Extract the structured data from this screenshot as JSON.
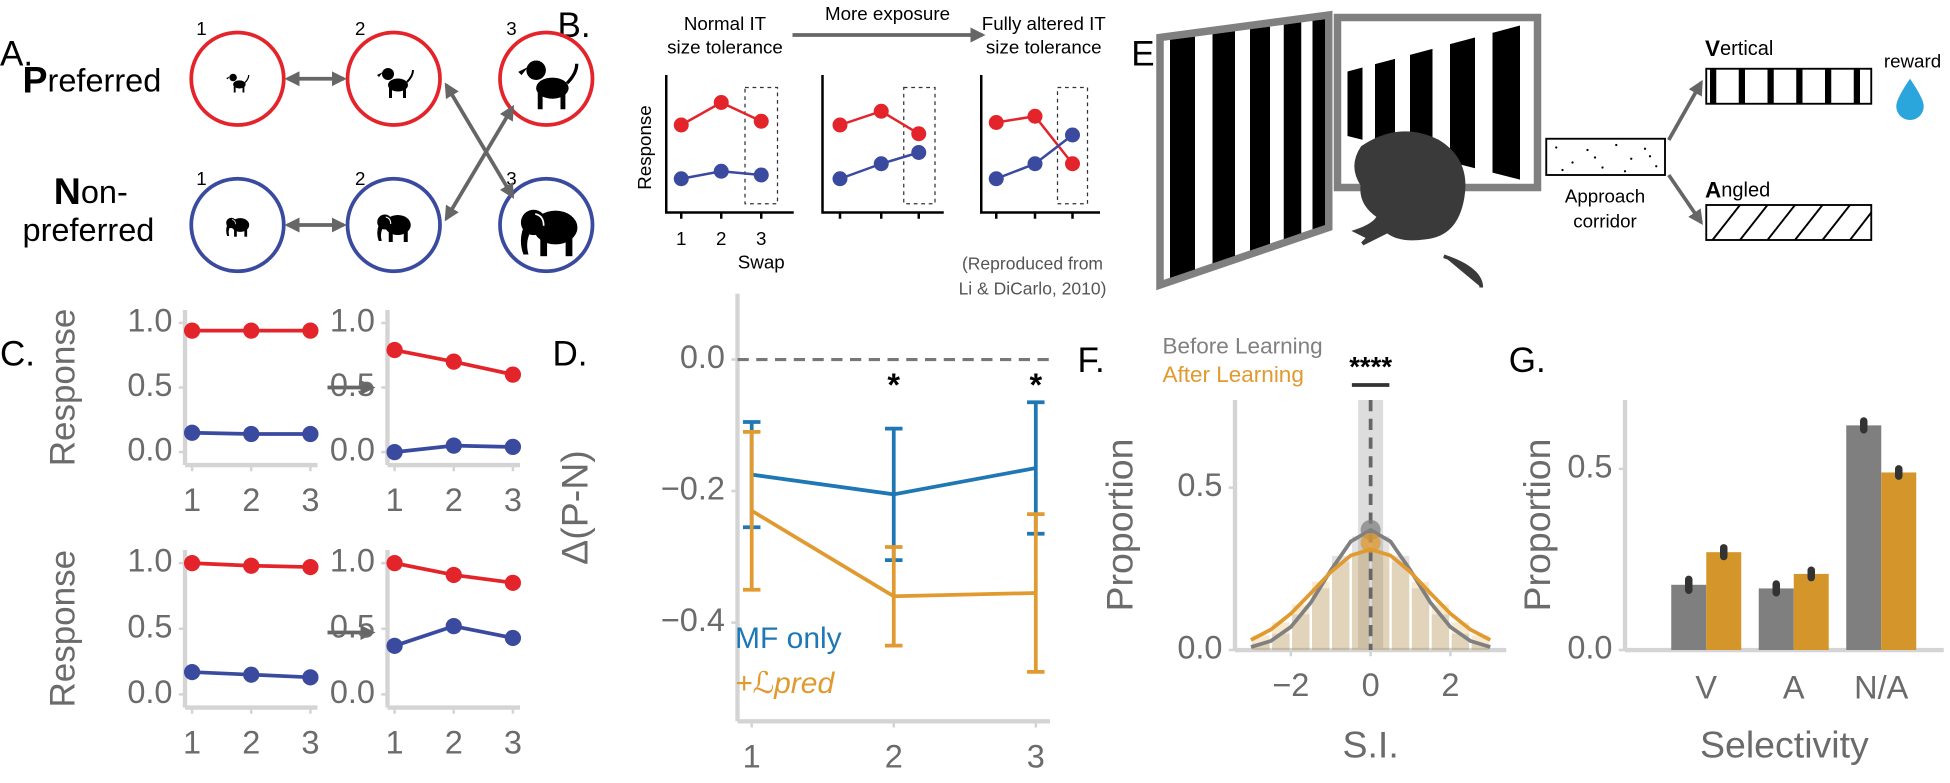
{
  "chart_data": [
    {
      "type": "line",
      "ylabel": "Response",
      "x": [
        1,
        2,
        3
      ],
      "series": [
        {
          "color": "#e3242b",
          "values": [
            0.94,
            0.94,
            0.94
          ]
        },
        {
          "color": "#3a4a9f",
          "values": [
            0.15,
            0.14,
            0.14
          ]
        }
      ],
      "xlim": [
        0.88,
        3.12
      ],
      "xticks": [
        1,
        2,
        3
      ],
      "ylim": [
        -0.1,
        1.1
      ],
      "yticks": [
        {
          "value": 0,
          "label": "0.0"
        },
        0.5,
        {
          "value": 1,
          "label": "1.0"
        }
      ]
    },
    {
      "type": "line",
      "x": [
        1,
        2,
        3
      ],
      "series": [
        {
          "color": "#e3242b",
          "values": [
            0.79,
            0.7,
            0.6
          ]
        },
        {
          "color": "#3a4a9f",
          "values": [
            0.0,
            0.05,
            0.04
          ]
        }
      ],
      "xlim": [
        0.88,
        3.12
      ],
      "xticks": [
        1,
        2,
        3
      ],
      "ylim": [
        -0.1,
        1.1
      ],
      "yticks": [
        {
          "value": 0,
          "label": "0.0"
        },
        0.5,
        {
          "value": 1,
          "label": "1.0"
        }
      ]
    },
    {
      "type": "line",
      "ylabel": "Response",
      "x": [
        1,
        2,
        3
      ],
      "series": [
        {
          "color": "#e3242b",
          "values": [
            1.0,
            0.98,
            0.97
          ]
        },
        {
          "color": "#3a4a9f",
          "values": [
            0.17,
            0.15,
            0.13
          ]
        }
      ],
      "xlim": [
        0.88,
        3.12
      ],
      "xticks": [
        1,
        2,
        3
      ],
      "ylim": [
        -0.1,
        1.1
      ],
      "yticks": [
        {
          "value": 0,
          "label": "0.0"
        },
        0.5,
        {
          "value": 1,
          "label": "1.0"
        }
      ]
    },
    {
      "type": "line",
      "x": [
        1,
        2,
        3
      ],
      "series": [
        {
          "color": "#e3242b",
          "values": [
            1.0,
            0.91,
            0.85
          ]
        },
        {
          "color": "#3a4a9f",
          "values": [
            0.37,
            0.52,
            0.43
          ]
        }
      ],
      "xlim": [
        0.88,
        3.12
      ],
      "xticks": [
        1,
        2,
        3
      ],
      "ylim": [
        -0.1,
        1.1
      ],
      "yticks": [
        {
          "value": 0,
          "label": "0.0"
        },
        0.5,
        {
          "value": 1,
          "label": "1.0"
        }
      ]
    },
    {
      "type": "line",
      "ylabel": "Δ(P-N)",
      "x": [
        1,
        2,
        3
      ],
      "series": [
        {
          "name": "MF only",
          "color": "#1f77b4",
          "values": [
            -0.175,
            -0.205,
            -0.165
          ],
          "errors": [
            0.08,
            0.1,
            0.1
          ]
        },
        {
          "name": "+ℒpred",
          "color": "#e09a2f",
          "values": [
            -0.23,
            -0.36,
            -0.355
          ],
          "errors": [
            0.12,
            0.075,
            0.12
          ]
        }
      ],
      "xlim": [
        0.9,
        3.1
      ],
      "xticks": [
        1,
        2,
        3
      ],
      "ylim": [
        -0.55,
        0.1
      ],
      "yticks": [
        {
          "value": -0.4,
          "label": "−0.4"
        },
        {
          "value": -0.2,
          "label": "−0.2"
        },
        {
          "value": 0,
          "label": "0.0"
        }
      ],
      "reference_line": 0,
      "annotations": [
        {
          "x": 2,
          "text": "*"
        },
        {
          "x": 3,
          "text": "*"
        }
      ]
    },
    {
      "type": "histogram",
      "xlabel": "S.I.",
      "ylabel": "Proportion",
      "bins": [
        -3,
        -2.5,
        -2,
        -1.5,
        -1,
        -0.5,
        0,
        0.5,
        1,
        1.5,
        2,
        2.5,
        3
      ],
      "curve_x": [
        -3,
        -2.5,
        -2,
        -1.5,
        -1,
        -0.5,
        0,
        0.5,
        1,
        1.5,
        2,
        2.5,
        3
      ],
      "series": [
        {
          "name": "Before Learning",
          "color": "#808080",
          "counts": [
            0.02,
            0.05,
            0.11,
            0.19,
            0.29,
            0.35,
            0.35,
            0.29,
            0.19,
            0.11,
            0.05,
            0.02
          ],
          "curve": [
            0.009,
            0.028,
            0.071,
            0.146,
            0.245,
            0.334,
            0.37,
            0.334,
            0.245,
            0.146,
            0.071,
            0.028,
            0.009
          ],
          "point": [
            0,
            0.37
          ]
        },
        {
          "name": "After Learning",
          "color": "#e09a2f",
          "counts": [
            0.045,
            0.085,
            0.14,
            0.21,
            0.27,
            0.3,
            0.3,
            0.27,
            0.21,
            0.14,
            0.085,
            0.045
          ],
          "curve": [
            0.031,
            0.063,
            0.112,
            0.175,
            0.24,
            0.291,
            0.31,
            0.291,
            0.24,
            0.175,
            0.112,
            0.063,
            0.031
          ],
          "point": [
            0,
            0.33
          ]
        }
      ],
      "xlim": [
        -3.4,
        3.4
      ],
      "xticks": [
        {
          "value": -2,
          "label": "−2"
        },
        0,
        2
      ],
      "ylim": [
        0,
        0.77
      ],
      "yticks": [
        {
          "value": 0,
          "label": "0.0"
        },
        0.5
      ],
      "reference_line": 0,
      "annotation": "****"
    },
    {
      "type": "bar",
      "xlabel": "Selectivity",
      "ylabel": "Proportion",
      "categories": [
        "V",
        "A",
        "N/A"
      ],
      "series": [
        {
          "color": "#7f7f7f",
          "values": [
            0.18,
            0.17,
            0.62
          ],
          "errors": [
            0.015,
            0.012,
            0.012
          ]
        },
        {
          "color": "#d4952a",
          "values": [
            0.27,
            0.21,
            0.49
          ],
          "errors": [
            0.012,
            0.01,
            0.01
          ]
        }
      ],
      "ylim": [
        0,
        0.69
      ],
      "yticks": [
        {
          "value": 0,
          "label": "0.0"
        },
        0.5
      ]
    }
  ],
  "panels": {
    "A": {
      "label": "A.",
      "preferred": {
        "initial": "P",
        "rest": "referred"
      },
      "nonpreferred": {
        "initial": "N",
        "rest": [
          "on-",
          "preferred"
        ]
      },
      "sizes": [
        "1",
        "2",
        "3"
      ]
    },
    "B": {
      "label": "B.",
      "titles": [
        [
          "Normal IT",
          "size tolerance"
        ],
        [
          "Fully altered IT",
          "size tolerance"
        ]
      ],
      "arrow_label": "More exposure",
      "ylabel": "Response",
      "xticks": [
        "1",
        "2",
        "3"
      ],
      "xlabel": "Swap",
      "credit": [
        "(Reproduced from",
        "Li & DiCarlo, 2010)"
      ]
    },
    "C": {
      "label": "C."
    },
    "D": {
      "label": "D."
    },
    "E": {
      "label": "E.",
      "vertical": {
        "initial": "V",
        "rest": "ertical"
      },
      "angled": {
        "initial": "A",
        "rest": "ngled"
      },
      "reward": "reward",
      "corridor": [
        "Approach",
        "corridor"
      ]
    },
    "F": {
      "label": "F."
    },
    "G": {
      "label": "G."
    }
  }
}
